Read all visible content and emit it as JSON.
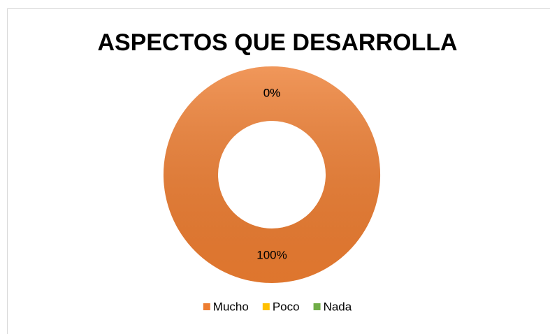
{
  "chart_data": {
    "type": "doughnut",
    "title": "ASPECTOS QUE DESARROLLA",
    "categories": [
      "Mucho",
      "Poco",
      "Nada"
    ],
    "values": [
      100,
      0,
      0
    ],
    "value_labels": [
      "100%",
      "0%",
      "0%"
    ],
    "colors": [
      "#ed7d31",
      "#ffc000",
      "#70ad47"
    ],
    "legend": "bottom"
  }
}
